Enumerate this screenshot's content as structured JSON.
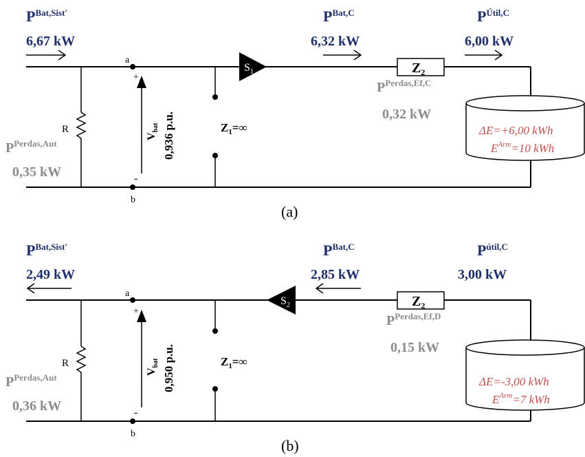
{
  "panels": [
    {
      "caption": "(a)",
      "p_bat_sist": {
        "sym": "P",
        "sup": "Bat,Sist'",
        "value": "6,67 kW"
      },
      "p_bat_c": {
        "sym": "P",
        "sup": "Bat,C",
        "value": "6,32 kW"
      },
      "p_util_c": {
        "sym": "P",
        "sup": "Útil,C",
        "value": "6,00 kW"
      },
      "p_perdas_ef": {
        "sym": "P",
        "sup": "Perdas,Ef,C",
        "value": "0,32 kW"
      },
      "p_perdas_aut": {
        "sym": "P",
        "sup": "Perdas,Aut",
        "value": "0,35 kW"
      },
      "node_a": "a",
      "node_b": "b",
      "plus": "+",
      "minus": "-",
      "resistor": "R",
      "vbat": {
        "sym": "V",
        "sub": "bat",
        "value": "0,936 p.u."
      },
      "z1": {
        "sym": "Z",
        "sub": "1",
        "rest": "=∞"
      },
      "switch": {
        "sym": "S",
        "sub": "1"
      },
      "z2": {
        "sym": "Z",
        "sub": "2"
      },
      "storage": {
        "line1": "ΔE=+6,00 kWh",
        "line2_sym": "E",
        "line2_sup": "Arm",
        "line2_rest": "=10 kWh"
      }
    },
    {
      "caption": "(b)",
      "p_bat_sist": {
        "sym": "P",
        "sup": "Bat,Sist'",
        "value": "2,49 kW"
      },
      "p_bat_c": {
        "sym": "P",
        "sup": "Bat,C",
        "value": "2,85 kW"
      },
      "p_util_c": {
        "sym": "P",
        "sup": "útil,C",
        "value": "3,00 kW"
      },
      "p_perdas_ef": {
        "sym": "P",
        "sup": "Perdas,Ef,D",
        "value": "0,15 kW"
      },
      "p_perdas_aut": {
        "sym": "P",
        "sup": "Perdas,Aut",
        "value": "0,36 kW"
      },
      "node_a": "a",
      "node_b": "b",
      "plus": "+",
      "minus": "-",
      "resistor": "R",
      "vbat": {
        "sym": "V",
        "sub": "bat",
        "value": "0,950 p.u."
      },
      "z1": {
        "sym": "Z",
        "sub": "1",
        "rest": "=∞"
      },
      "switch": {
        "sym": "S",
        "sub": "2"
      },
      "z2": {
        "sym": "Z",
        "sub": "2"
      },
      "storage": {
        "line1": "ΔE=-3,00 kWh",
        "line2_sym": "E",
        "line2_sup": "Arm",
        "line2_rest": "=7 kWh"
      }
    }
  ]
}
